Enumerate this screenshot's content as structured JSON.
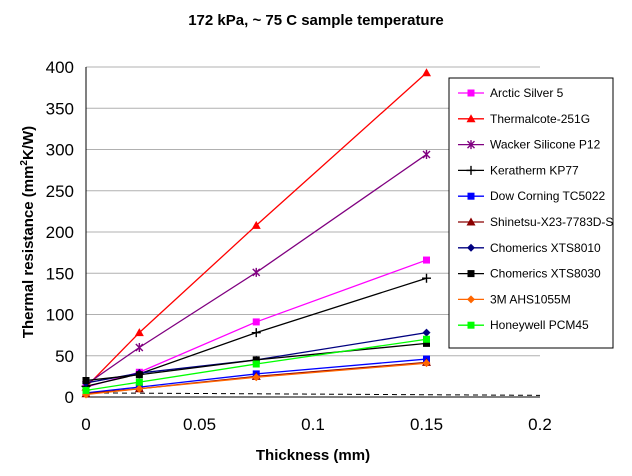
{
  "chart_data": {
    "type": "line",
    "title": "172 kPa, ~ 75 C sample temperature",
    "xlabel": "Thickness (mm)",
    "ylabel_main": "Thermal resistance (mm",
    "ylabel_sup": "2",
    "ylabel_tail": "K/W)",
    "xlim": [
      0,
      0.2
    ],
    "ylim": [
      0,
      400
    ],
    "x_ticks": [
      "0",
      "0.05",
      "0.1",
      "0.15",
      "0.2"
    ],
    "y_ticks": [
      "0",
      "50",
      "100",
      "150",
      "200",
      "250",
      "300",
      "350",
      "400"
    ],
    "grid": "horizontal",
    "legend_position": "right",
    "x": [
      0,
      0.0235,
      0.075,
      0.15
    ],
    "series": [
      {
        "name": "Arctic Silver 5",
        "color": "#ff00ff",
        "marker": "square",
        "values": [
          12,
          30,
          91,
          166
        ]
      },
      {
        "name": "Thermalcote-251G",
        "color": "#ff0000",
        "marker": "triangle",
        "values": [
          12,
          78,
          208,
          393
        ]
      },
      {
        "name": "Wacker Silicone P12",
        "color": "#800080",
        "marker": "asterisk",
        "values": [
          15,
          60,
          151,
          294
        ]
      },
      {
        "name": "Keratherm KP77",
        "color": "#000000",
        "marker": "plus",
        "values": [
          13,
          28,
          78,
          144
        ]
      },
      {
        "name": "Dow Corning TC5022",
        "color": "#0000ff",
        "marker": "square",
        "values": [
          5,
          12,
          28,
          46
        ]
      },
      {
        "name": "Shinetsu-X23-7783D-S",
        "color": "#8b0000",
        "marker": "triangle",
        "values": [
          4,
          10,
          25,
          42
        ]
      },
      {
        "name": "Chomerics XTS8010",
        "color": "#000080",
        "marker": "diamond",
        "values": [
          17,
          29,
          45,
          78
        ]
      },
      {
        "name": "Chomerics XTS8030",
        "color": "#000000",
        "marker": "square",
        "values": [
          20,
          27,
          45,
          65
        ]
      },
      {
        "name": "3M AHS1055M",
        "color": "#ff6600",
        "marker": "diamond",
        "values": [
          3,
          10,
          24,
          41
        ]
      },
      {
        "name": "Honeywell PCM45",
        "color": "#00ff00",
        "marker": "square",
        "values": [
          8,
          18,
          40,
          70
        ]
      }
    ],
    "reference_line": {
      "style": "dashed",
      "color": "#000000",
      "values": [
        5,
        2
      ]
    }
  }
}
